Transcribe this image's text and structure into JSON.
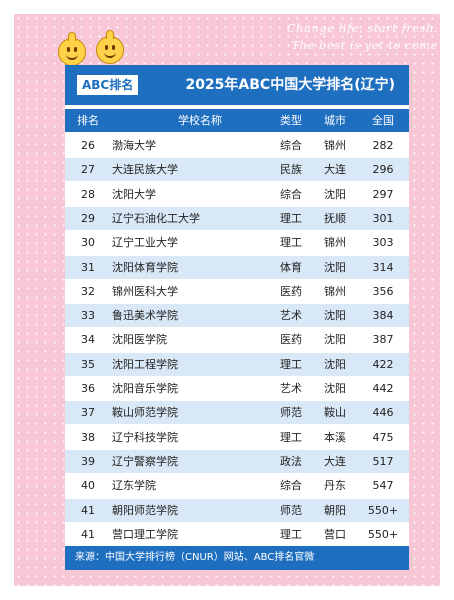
{
  "decoration": {
    "line1": "Change life, start fresh.",
    "line2": "The best is yet to come"
  },
  "header": {
    "badge": "ABC排名",
    "title": "2025年ABC中国大学排名(辽宁)"
  },
  "columns": {
    "rank": "排名",
    "name": "学校名称",
    "type": "类型",
    "city": "城市",
    "national": "全国"
  },
  "rows": [
    {
      "rank": "26",
      "name": "渤海大学",
      "type": "综合",
      "city": "锦州",
      "national": "282"
    },
    {
      "rank": "27",
      "name": "大连民族大学",
      "type": "民族",
      "city": "大连",
      "national": "296"
    },
    {
      "rank": "28",
      "name": "沈阳大学",
      "type": "综合",
      "city": "沈阳",
      "national": "297"
    },
    {
      "rank": "29",
      "name": "辽宁石油化工大学",
      "type": "理工",
      "city": "抚顺",
      "national": "301"
    },
    {
      "rank": "30",
      "name": "辽宁工业大学",
      "type": "理工",
      "city": "锦州",
      "national": "303"
    },
    {
      "rank": "31",
      "name": "沈阳体育学院",
      "type": "体育",
      "city": "沈阳",
      "national": "314"
    },
    {
      "rank": "32",
      "name": "锦州医科大学",
      "type": "医药",
      "city": "锦州",
      "national": "356"
    },
    {
      "rank": "33",
      "name": "鲁迅美术学院",
      "type": "艺术",
      "city": "沈阳",
      "national": "384"
    },
    {
      "rank": "34",
      "name": "沈阳医学院",
      "type": "医药",
      "city": "沈阳",
      "national": "387"
    },
    {
      "rank": "35",
      "name": "沈阳工程学院",
      "type": "理工",
      "city": "沈阳",
      "national": "422"
    },
    {
      "rank": "36",
      "name": "沈阳音乐学院",
      "type": "艺术",
      "city": "沈阳",
      "national": "442"
    },
    {
      "rank": "37",
      "name": "鞍山师范学院",
      "type": "师范",
      "city": "鞍山",
      "national": "446"
    },
    {
      "rank": "38",
      "name": "辽宁科技学院",
      "type": "理工",
      "city": "本溪",
      "national": "475"
    },
    {
      "rank": "39",
      "name": "辽宁警察学院",
      "type": "政法",
      "city": "大连",
      "national": "517"
    },
    {
      "rank": "40",
      "name": "辽东学院",
      "type": "综合",
      "city": "丹东",
      "national": "547"
    },
    {
      "rank": "41",
      "name": "朝阳师范学院",
      "type": "师范",
      "city": "朝阳",
      "national": "550+"
    },
    {
      "rank": "41",
      "name": "营口理工学院",
      "type": "理工",
      "city": "营口",
      "national": "550+"
    }
  ],
  "footer": {
    "source": "来源：中国大学排行榜（CNUR）网站、ABC排名官微"
  },
  "colors": {
    "accent": "#1f6fc1",
    "row_alt": "#d9e8f6",
    "frame": "#f7c7d6"
  }
}
